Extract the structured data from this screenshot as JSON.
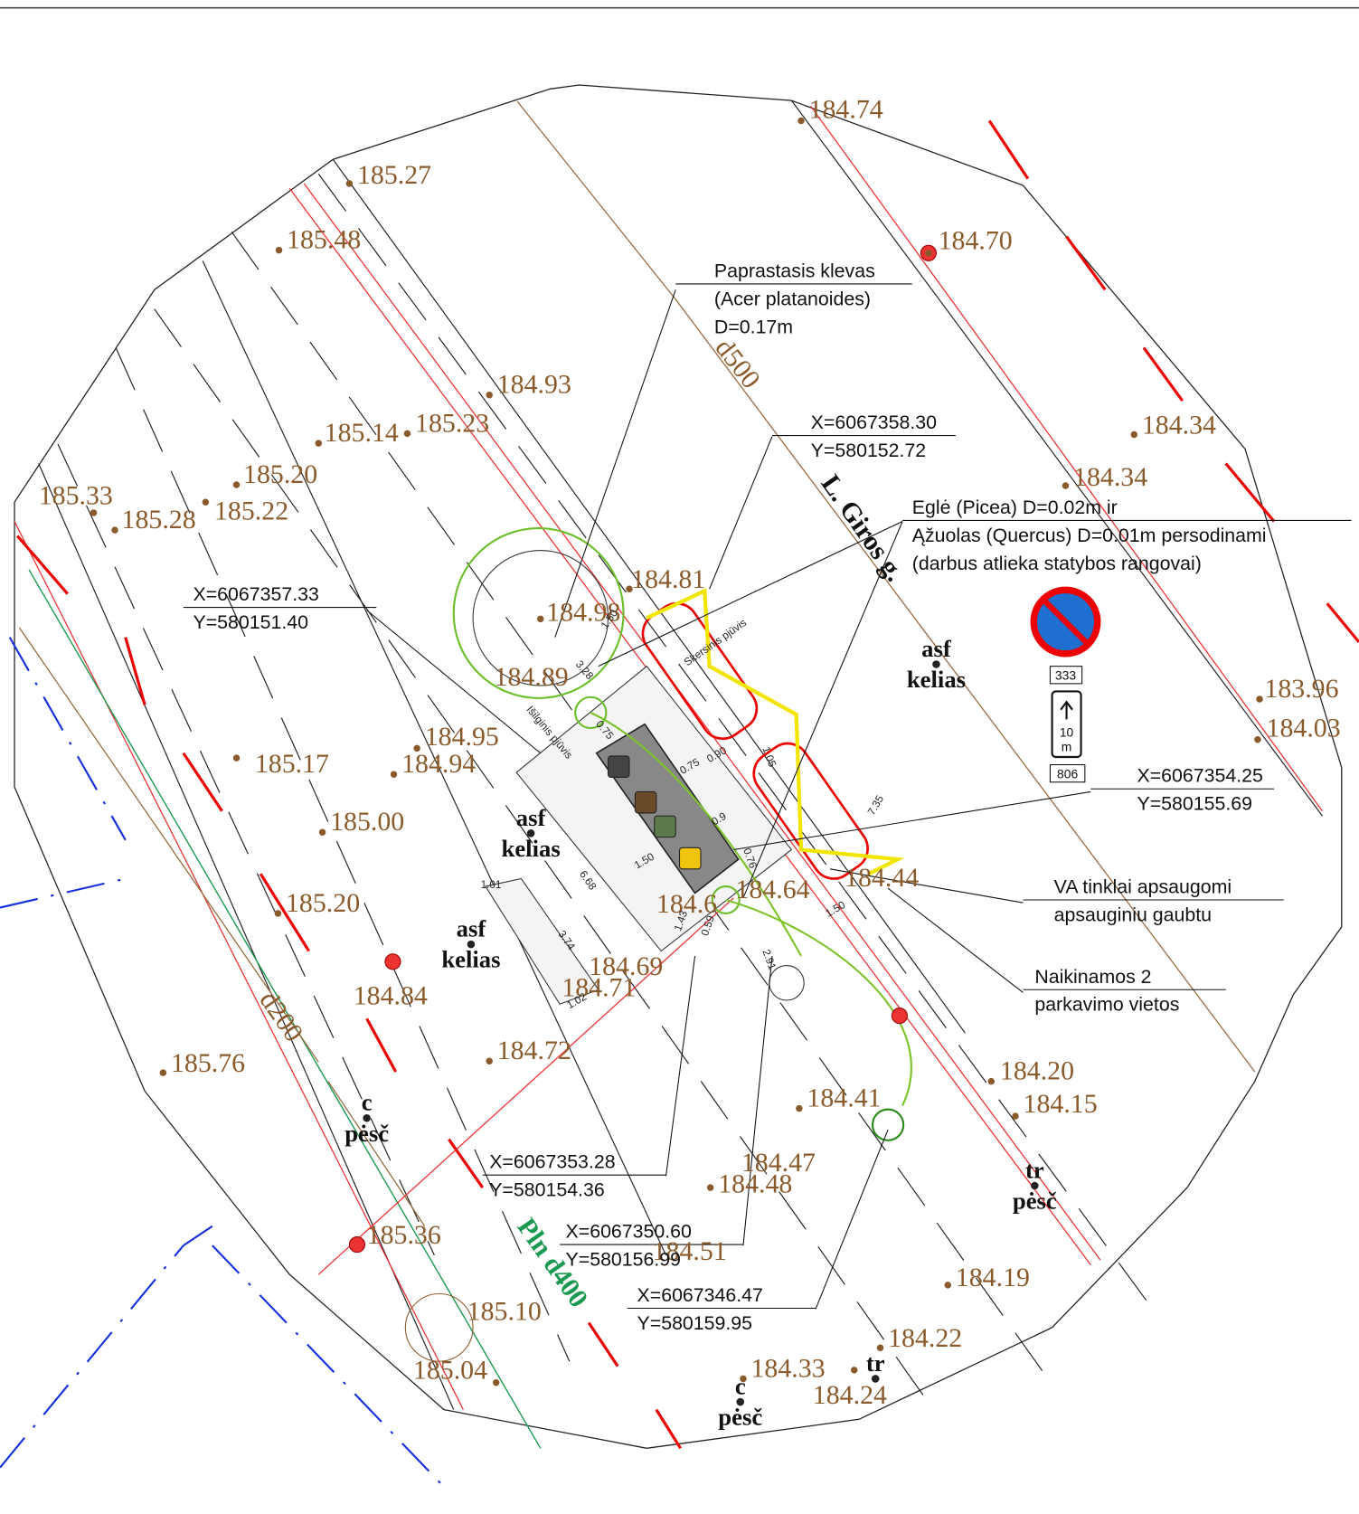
{
  "elevations": [
    "184.74",
    "185.27",
    "185.48",
    "184.70",
    "184.93",
    "185.14",
    "185.23",
    "184.34",
    "184.34",
    "185.20",
    "185.33",
    "185.28",
    "185.22",
    "184.81",
    "184.98",
    "184.89",
    "183.96",
    "184.03",
    "184.95",
    "185.17",
    "184.94",
    "185.00",
    "184.44",
    "184.64",
    "184.6",
    "185.20",
    "184.69",
    "184.71",
    "184.84",
    "184.72",
    "185.76",
    "184.20",
    "184.41",
    "184.15",
    "184.47",
    "184.48",
    "184.51",
    "185.36",
    "184.19",
    "185.10",
    "184.22",
    "185.04",
    "184.33",
    "184.24"
  ],
  "notes": [
    [
      "Paprastasis klevas",
      "(Acer platanoides)",
      "D=0.17m"
    ],
    [
      "X=6067358.30",
      "Y=580152.72"
    ],
    [
      "Eglė (Picea) D=0.02m ir",
      "Ąžuolas (Quercus) D=0.01m persodinami",
      "(darbus atlieka statybos rangovai)"
    ],
    [
      "X=6067357.33",
      "Y=580151.40"
    ],
    [
      "X=6067354.25",
      "Y=580155.69"
    ],
    [
      "VA tinklai apsaugomi",
      "apsauginiu gaubtu"
    ],
    [
      "Naikinamos 2",
      "parkavimo vietos"
    ],
    [
      "X=6067353.28",
      "Y=580154.36"
    ],
    [
      "X=6067350.60",
      "Y=580156.99"
    ],
    [
      "X=6067346.47",
      "Y=580159.95"
    ]
  ],
  "place_labels": [
    [
      "asf",
      "kelias"
    ],
    [
      "asf",
      "kelias"
    ],
    [
      "asf",
      "kelias"
    ],
    [
      "c",
      "pėsč"
    ],
    [
      "c",
      "pėsč"
    ],
    [
      "tr",
      "pėsč"
    ],
    [
      "tr"
    ]
  ],
  "pipe_labels": [
    "d500",
    "L. Giros g.",
    "d200",
    "Pln d400"
  ],
  "sign": {
    "code": "333",
    "distance": "10",
    "unit": "m",
    "code2": "806"
  },
  "dimensions": [
    "1.50",
    "3.28",
    "0.75",
    "Išilginis pjūvis",
    "Skersinis pjūvis",
    "0.75",
    "0.90",
    "1.05",
    "6.68",
    "1.01",
    "3.74",
    "1.02",
    "1.50",
    "0.76",
    "1.43",
    "0.59",
    "2.91",
    "1.50",
    "7.35",
    "0.9"
  ]
}
